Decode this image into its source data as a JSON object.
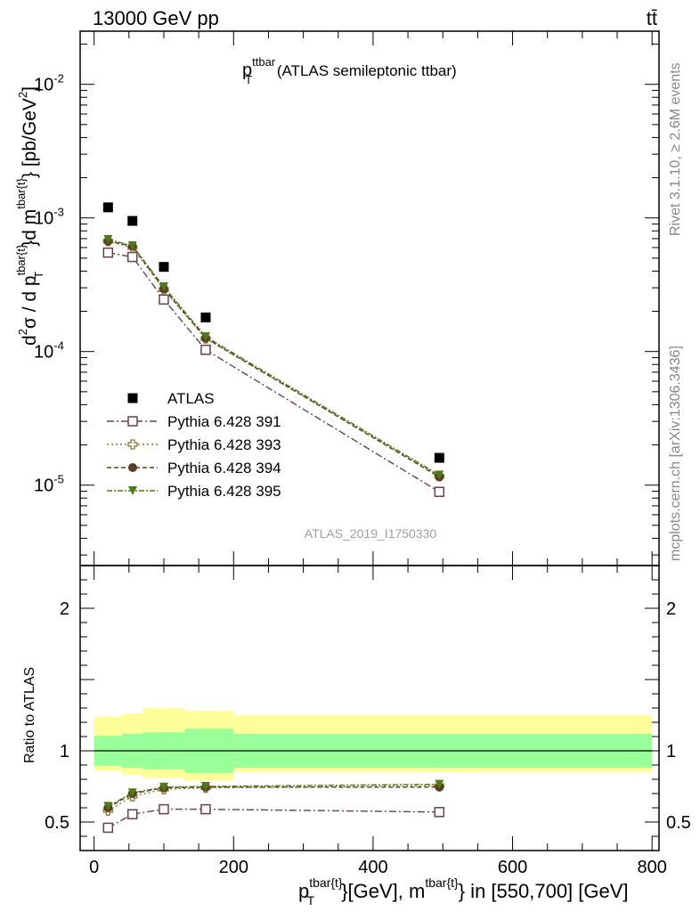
{
  "header": {
    "left": "13000 GeV pp",
    "right": "tt̄"
  },
  "side_labels": {
    "rivet": "Rivet 3.1.10, ≥ 2.6M events",
    "mcplots": "mcplots.cern.ch [arXiv:1306.3436]"
  },
  "main_title": {
    "p": "p",
    "sup": "ttbar",
    "sub": "T",
    "rest": " (ATLAS semileptonic ttbar)"
  },
  "watermark": "ATLAS_2019_I1750330",
  "y_label_main": {
    "d2": "d",
    "exp2": "2",
    "sigma": "σ  /  d p",
    "sup1": "tbar{t}",
    "sub1": "T",
    "mid": "}d m",
    "sup2": "tbar{t}",
    "end": "} [pb/GeV",
    "exp_gev": "2",
    "close": "]"
  },
  "y_label_ratio": "Ratio to ATLAS",
  "x_label": {
    "p": "p",
    "sup1": "tbar{t}",
    "sub1": "T",
    "mid": "}[GeV], m",
    "sup2": "tbar{t}",
    "end": "} in [550,700] [GeV]"
  },
  "colors": {
    "atlas": "#000000",
    "py391": "#6b3f4e",
    "py393": "#8c7a34",
    "py394": "#5a4022",
    "py395": "#4f7a1a",
    "band_inner": "#99ff99",
    "band_outer": "#ffff99"
  },
  "chart_data": {
    "type": "scatter",
    "main": {
      "yscale": "log",
      "xlim": [
        -20,
        810
      ],
      "ylim": [
        2.5e-06,
        0.025
      ],
      "y_ticks": [
        {
          "value": 1e-05,
          "base": "10",
          "exp": "-5"
        },
        {
          "value": 0.0001,
          "base": "10",
          "exp": "-4"
        },
        {
          "value": 0.001,
          "base": "10",
          "exp": "-3"
        },
        {
          "value": 0.01,
          "base": "10",
          "exp": "-2"
        }
      ],
      "legend_position": "left-center"
    },
    "ratio": {
      "ylim": [
        0.3,
        2.3
      ],
      "y_ticks": [
        {
          "value": 0.5,
          "label": "0.5"
        },
        {
          "value": 1,
          "label": "1"
        },
        {
          "value": 2,
          "label": "2"
        }
      ],
      "band_x_edges": [
        0,
        40,
        70,
        130,
        200,
        800
      ],
      "band_inner": [
        [
          0.895,
          1.105
        ],
        [
          0.88,
          1.12
        ],
        [
          0.87,
          1.13
        ],
        [
          0.845,
          1.155
        ],
        [
          0.88,
          1.12
        ]
      ],
      "band_outer": [
        [
          0.86,
          1.24
        ],
        [
          0.83,
          1.26
        ],
        [
          0.81,
          1.3
        ],
        [
          0.79,
          1.28
        ],
        [
          0.85,
          1.25
        ]
      ]
    },
    "x_ticks": [
      {
        "value": 0,
        "label": "0"
      },
      {
        "value": 200,
        "label": "200"
      },
      {
        "value": 400,
        "label": "400"
      },
      {
        "value": 600,
        "label": "600"
      },
      {
        "value": 800,
        "label": "800"
      }
    ],
    "x": [
      20,
      55,
      100,
      160,
      495
    ],
    "series": [
      {
        "name": "ATLAS",
        "style": "data",
        "marker": "filled-square",
        "color": "#000000",
        "values": [
          0.0012,
          0.00095,
          0.00043,
          0.00018,
          1.6e-05
        ],
        "ratio": [
          1,
          1,
          1,
          1,
          1
        ]
      },
      {
        "name": "Pythia 6.428 391",
        "style": "dashdot",
        "marker": "open-square",
        "color": "#6b3f4e",
        "values": [
          0.00055,
          0.00051,
          0.000245,
          0.000103,
          8.9e-06
        ],
        "ratio": [
          0.46,
          0.555,
          0.59,
          0.59,
          0.57
        ]
      },
      {
        "name": "Pythia 6.428 393",
        "style": "dotted",
        "marker": "open-cross",
        "color": "#8c7a34",
        "values": [
          0.00067,
          0.0006,
          0.00029,
          0.000125,
          1.17e-05
        ],
        "ratio": [
          0.58,
          0.68,
          0.73,
          0.74,
          0.755
        ]
      },
      {
        "name": "Pythia 6.428 394",
        "style": "dashed",
        "marker": "filled-circle",
        "color": "#5a4022",
        "values": [
          0.00067,
          0.000615,
          0.000295,
          0.000126,
          1.15e-05
        ],
        "ratio": [
          0.6,
          0.7,
          0.74,
          0.745,
          0.745
        ]
      },
      {
        "name": "Pythia 6.428 395",
        "style": "dashdotted",
        "marker": "filled-triangle-down",
        "color": "#4f7a1a",
        "values": [
          0.00069,
          0.00062,
          0.000305,
          0.000129,
          1.19e-05
        ],
        "ratio": [
          0.61,
          0.705,
          0.745,
          0.75,
          0.765
        ]
      }
    ]
  }
}
